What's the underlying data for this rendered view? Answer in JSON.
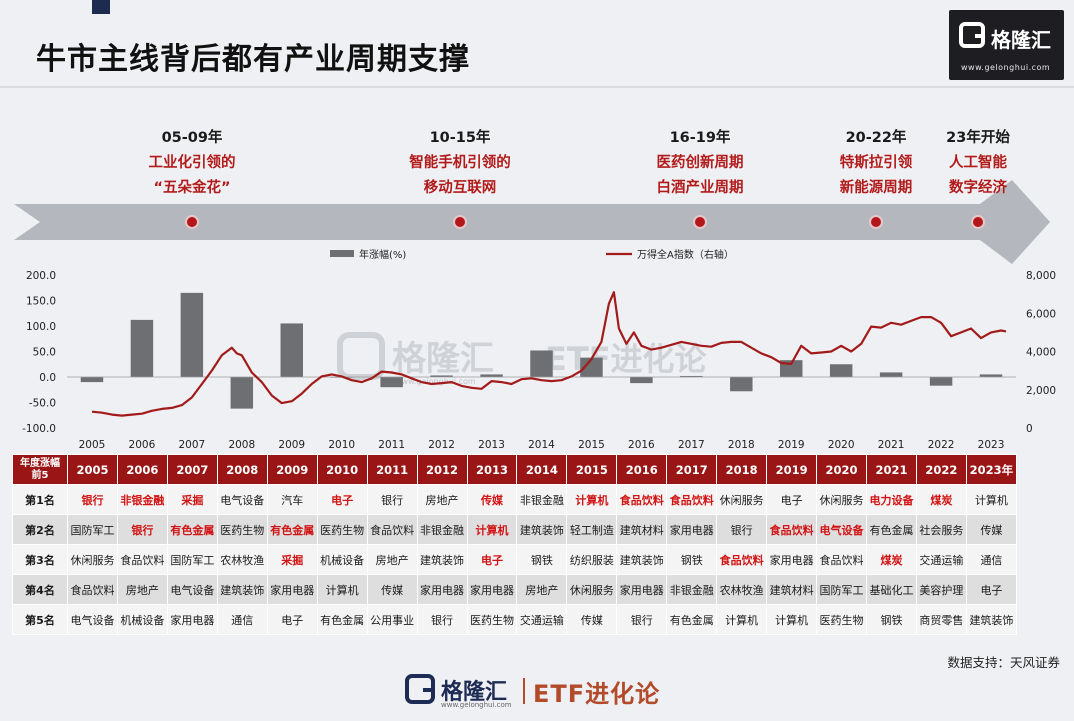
{
  "title": "牛市主线背后都有产业周期支撑",
  "logo": {
    "name": "格隆汇",
    "url": "www.gelonghui.com"
  },
  "eras": [
    {
      "year": "05-09年",
      "lines": [
        "工业化引领的",
        "“五朵金花”"
      ]
    },
    {
      "year": "10-15年",
      "lines": [
        "智能手机引领的",
        "移动互联网"
      ]
    },
    {
      "year": "16-19年",
      "lines": [
        "医药创新周期",
        "白酒产业周期"
      ]
    },
    {
      "year": "20-22年",
      "lines": [
        "特斯拉引领",
        "新能源周期"
      ]
    },
    {
      "year": "23年开始",
      "lines": [
        "人工智能",
        "数字经济"
      ]
    }
  ],
  "chart_data": {
    "type": "bar+line",
    "legend": {
      "bar": "年涨幅(%)",
      "line": "万得全A指数（右轴）"
    },
    "categories": [
      "2005",
      "2006",
      "2007",
      "2008",
      "2009",
      "2010",
      "2011",
      "2012",
      "2013",
      "2014",
      "2015",
      "2016",
      "2017",
      "2018",
      "2019",
      "2020",
      "2021",
      "2022",
      "2023"
    ],
    "bar_values": [
      -10,
      112,
      165,
      -62,
      105,
      0,
      -20,
      3,
      5,
      52,
      38,
      -12,
      2,
      -28,
      33,
      25,
      9,
      -17,
      5
    ],
    "left_axis": {
      "min": -100,
      "max": 200,
      "ticks": [
        "-100.0",
        "-50.0",
        "0.0",
        "50.0",
        "100.0",
        "150.0",
        "200.0"
      ]
    },
    "right_axis": {
      "min": 0,
      "max": 8000,
      "ticks": [
        "0",
        "2,000",
        "4,000",
        "6,000",
        "8,000"
      ]
    },
    "line_points": [
      [
        2005.0,
        850
      ],
      [
        2005.2,
        800
      ],
      [
        2005.4,
        700
      ],
      [
        2005.6,
        650
      ],
      [
        2005.8,
        700
      ],
      [
        2006.0,
        750
      ],
      [
        2006.2,
        900
      ],
      [
        2006.4,
        1000
      ],
      [
        2006.6,
        1050
      ],
      [
        2006.8,
        1200
      ],
      [
        2007.0,
        1600
      ],
      [
        2007.2,
        2300
      ],
      [
        2007.4,
        3000
      ],
      [
        2007.6,
        3800
      ],
      [
        2007.8,
        4200
      ],
      [
        2007.9,
        3900
      ],
      [
        2008.0,
        3800
      ],
      [
        2008.2,
        2900
      ],
      [
        2008.4,
        2400
      ],
      [
        2008.6,
        1700
      ],
      [
        2008.8,
        1300
      ],
      [
        2009.0,
        1400
      ],
      [
        2009.2,
        1800
      ],
      [
        2009.4,
        2300
      ],
      [
        2009.6,
        2700
      ],
      [
        2009.8,
        2800
      ],
      [
        2010.0,
        2700
      ],
      [
        2010.2,
        2500
      ],
      [
        2010.4,
        2400
      ],
      [
        2010.6,
        2600
      ],
      [
        2010.8,
        2950
      ],
      [
        2011.0,
        2900
      ],
      [
        2011.2,
        2800
      ],
      [
        2011.4,
        2600
      ],
      [
        2011.6,
        2400
      ],
      [
        2011.8,
        2300
      ],
      [
        2012.0,
        2350
      ],
      [
        2012.2,
        2400
      ],
      [
        2012.4,
        2200
      ],
      [
        2012.6,
        2100
      ],
      [
        2012.8,
        2050
      ],
      [
        2013.0,
        2450
      ],
      [
        2013.2,
        2400
      ],
      [
        2013.4,
        2300
      ],
      [
        2013.6,
        2550
      ],
      [
        2013.8,
        2600
      ],
      [
        2014.0,
        2500
      ],
      [
        2014.2,
        2450
      ],
      [
        2014.4,
        2500
      ],
      [
        2014.6,
        2700
      ],
      [
        2014.8,
        3000
      ],
      [
        2015.0,
        3600
      ],
      [
        2015.2,
        4500
      ],
      [
        2015.35,
        6500
      ],
      [
        2015.45,
        7100
      ],
      [
        2015.55,
        5200
      ],
      [
        2015.7,
        4400
      ],
      [
        2015.85,
        5000
      ],
      [
        2016.0,
        4300
      ],
      [
        2016.2,
        4100
      ],
      [
        2016.4,
        4200
      ],
      [
        2016.6,
        4350
      ],
      [
        2016.8,
        4500
      ],
      [
        2017.0,
        4400
      ],
      [
        2017.2,
        4300
      ],
      [
        2017.4,
        4250
      ],
      [
        2017.6,
        4450
      ],
      [
        2017.8,
        4500
      ],
      [
        2018.0,
        4500
      ],
      [
        2018.2,
        4200
      ],
      [
        2018.4,
        3900
      ],
      [
        2018.6,
        3700
      ],
      [
        2018.8,
        3400
      ],
      [
        2019.0,
        3350
      ],
      [
        2019.2,
        4300
      ],
      [
        2019.4,
        3900
      ],
      [
        2019.6,
        3950
      ],
      [
        2019.8,
        4000
      ],
      [
        2020.0,
        4300
      ],
      [
        2020.2,
        4000
      ],
      [
        2020.4,
        4400
      ],
      [
        2020.6,
        5300
      ],
      [
        2020.8,
        5250
      ],
      [
        2021.0,
        5500
      ],
      [
        2021.2,
        5400
      ],
      [
        2021.4,
        5600
      ],
      [
        2021.6,
        5800
      ],
      [
        2021.8,
        5800
      ],
      [
        2022.0,
        5500
      ],
      [
        2022.2,
        4800
      ],
      [
        2022.4,
        5000
      ],
      [
        2022.6,
        5200
      ],
      [
        2022.8,
        4700
      ],
      [
        2023.0,
        5000
      ],
      [
        2023.2,
        5100
      ],
      [
        2023.3,
        5050
      ]
    ],
    "colors": {
      "bar": "#6d6f73",
      "line": "#a31a1a"
    }
  },
  "table": {
    "corner": [
      "年度涨幅",
      "前5"
    ],
    "years": [
      "2005",
      "2006",
      "2007",
      "2008",
      "2009",
      "2010",
      "2011",
      "2012",
      "2013",
      "2014",
      "2015",
      "2016",
      "2017",
      "2018",
      "2019",
      "2020",
      "2021",
      "2022",
      "2023年"
    ],
    "rows": [
      {
        "label": "第1名",
        "cells": [
          {
            "t": "银行",
            "h": true
          },
          {
            "t": "非银金融",
            "h": true
          },
          {
            "t": "采掘",
            "h": true
          },
          {
            "t": "电气设备",
            "h": false
          },
          {
            "t": "汽车",
            "h": false
          },
          {
            "t": "电子",
            "h": true
          },
          {
            "t": "银行",
            "h": false
          },
          {
            "t": "房地产",
            "h": false
          },
          {
            "t": "传媒",
            "h": true
          },
          {
            "t": "非银金融",
            "h": false
          },
          {
            "t": "计算机",
            "h": true
          },
          {
            "t": "食品饮料",
            "h": true
          },
          {
            "t": "食品饮料",
            "h": true
          },
          {
            "t": "休闲服务",
            "h": false
          },
          {
            "t": "电子",
            "h": false
          },
          {
            "t": "休闲服务",
            "h": false
          },
          {
            "t": "电力设备",
            "h": true
          },
          {
            "t": "煤炭",
            "h": true
          },
          {
            "t": "计算机",
            "h": false
          }
        ]
      },
      {
        "label": "第2名",
        "cells": [
          {
            "t": "国防军工",
            "h": false
          },
          {
            "t": "银行",
            "h": true
          },
          {
            "t": "有色金属",
            "h": true
          },
          {
            "t": "医药生物",
            "h": false
          },
          {
            "t": "有色金属",
            "h": true
          },
          {
            "t": "医药生物",
            "h": false
          },
          {
            "t": "食品饮料",
            "h": false
          },
          {
            "t": "非银金融",
            "h": false
          },
          {
            "t": "计算机",
            "h": true
          },
          {
            "t": "建筑装饰",
            "h": false
          },
          {
            "t": "轻工制造",
            "h": false
          },
          {
            "t": "建筑材料",
            "h": false
          },
          {
            "t": "家用电器",
            "h": false
          },
          {
            "t": "银行",
            "h": false
          },
          {
            "t": "食品饮料",
            "h": true
          },
          {
            "t": "电气设备",
            "h": true
          },
          {
            "t": "有色金属",
            "h": false
          },
          {
            "t": "社会服务",
            "h": false
          },
          {
            "t": "传媒",
            "h": false
          }
        ]
      },
      {
        "label": "第3名",
        "cells": [
          {
            "t": "休闲服务",
            "h": false
          },
          {
            "t": "食品饮料",
            "h": false
          },
          {
            "t": "国防军工",
            "h": false
          },
          {
            "t": "农林牧渔",
            "h": false
          },
          {
            "t": "采掘",
            "h": true
          },
          {
            "t": "机械设备",
            "h": false
          },
          {
            "t": "房地产",
            "h": false
          },
          {
            "t": "建筑装饰",
            "h": false
          },
          {
            "t": "电子",
            "h": true
          },
          {
            "t": "钢铁",
            "h": false
          },
          {
            "t": "纺织服装",
            "h": false
          },
          {
            "t": "建筑装饰",
            "h": false
          },
          {
            "t": "钢铁",
            "h": false
          },
          {
            "t": "食品饮料",
            "h": true
          },
          {
            "t": "家用电器",
            "h": false
          },
          {
            "t": "食品饮料",
            "h": false
          },
          {
            "t": "煤炭",
            "h": true
          },
          {
            "t": "交通运输",
            "h": false
          },
          {
            "t": "通信",
            "h": false
          }
        ]
      },
      {
        "label": "第4名",
        "cells": [
          {
            "t": "食品饮料",
            "h": false
          },
          {
            "t": "房地产",
            "h": false
          },
          {
            "t": "电气设备",
            "h": false
          },
          {
            "t": "建筑装饰",
            "h": false
          },
          {
            "t": "家用电器",
            "h": false
          },
          {
            "t": "计算机",
            "h": false
          },
          {
            "t": "传媒",
            "h": false
          },
          {
            "t": "家用电器",
            "h": false
          },
          {
            "t": "家用电器",
            "h": false
          },
          {
            "t": "房地产",
            "h": false
          },
          {
            "t": "休闲服务",
            "h": false
          },
          {
            "t": "家用电器",
            "h": false
          },
          {
            "t": "非银金融",
            "h": false
          },
          {
            "t": "农林牧渔",
            "h": false
          },
          {
            "t": "建筑材料",
            "h": false
          },
          {
            "t": "国防军工",
            "h": false
          },
          {
            "t": "基础化工",
            "h": false
          },
          {
            "t": "美容护理",
            "h": false
          },
          {
            "t": "电子",
            "h": false
          }
        ]
      },
      {
        "label": "第5名",
        "cells": [
          {
            "t": "电气设备",
            "h": false
          },
          {
            "t": "机械设备",
            "h": false
          },
          {
            "t": "家用电器",
            "h": false
          },
          {
            "t": "通信",
            "h": false
          },
          {
            "t": "电子",
            "h": false
          },
          {
            "t": "有色金属",
            "h": false
          },
          {
            "t": "公用事业",
            "h": false
          },
          {
            "t": "银行",
            "h": false
          },
          {
            "t": "医药生物",
            "h": false
          },
          {
            "t": "交通运输",
            "h": false
          },
          {
            "t": "传媒",
            "h": false
          },
          {
            "t": "银行",
            "h": false
          },
          {
            "t": "有色金属",
            "h": false
          },
          {
            "t": "计算机",
            "h": false
          },
          {
            "t": "计算机",
            "h": false
          },
          {
            "t": "医药生物",
            "h": false
          },
          {
            "t": "钢铁",
            "h": false
          },
          {
            "t": "商贸零售",
            "h": false
          },
          {
            "t": "建筑装饰",
            "h": false
          }
        ]
      }
    ]
  },
  "source": "数据支持：天风证券",
  "footer": {
    "logo_name": "格隆汇",
    "logo_url": "www.gelonghui.com",
    "brand": "ETF进化论"
  },
  "watermark": {
    "name": "格隆汇",
    "url": "www.gelonghui.com",
    "brand": "ETF进化论"
  }
}
